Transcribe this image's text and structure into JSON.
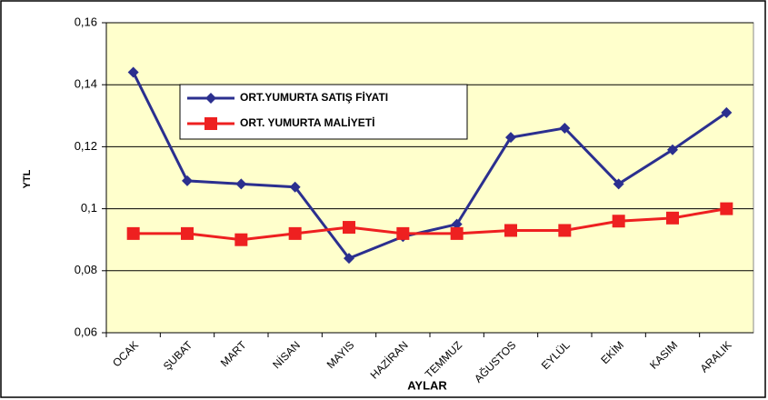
{
  "chart_data": {
    "type": "line",
    "x_label": "AYLAR",
    "y_label": "YTL",
    "categories": [
      "OCAK",
      "ŞUBAT",
      "MART",
      "NİSAN",
      "MAYIS",
      "HAZİRAN",
      "TEMMUZ",
      "AĞUSTOS",
      "EYLÜL",
      "EKİM",
      "KASIM",
      "ARALIK"
    ],
    "series": [
      {
        "name": "ORT.YUMURTA SATIŞ FİYATI",
        "color": "#2b2f8f",
        "marker": "diamond",
        "values": [
          0.144,
          0.109,
          0.108,
          0.107,
          0.084,
          0.091,
          0.095,
          0.123,
          0.126,
          0.108,
          0.119,
          0.131
        ]
      },
      {
        "name": "ORT. YUMURTA MALİYETİ",
        "color": "#ee2020",
        "marker": "square",
        "values": [
          0.092,
          0.092,
          0.09,
          0.092,
          0.094,
          0.092,
          0.092,
          0.093,
          0.093,
          0.096,
          0.097,
          0.1
        ]
      }
    ],
    "ylim": [
      0.06,
      0.16
    ],
    "yticks": [
      {
        "value": 0.06,
        "label": "0,06"
      },
      {
        "value": 0.08,
        "label": "0,08"
      },
      {
        "value": 0.1,
        "label": "0,1"
      },
      {
        "value": 0.12,
        "label": "0,12"
      },
      {
        "value": 0.14,
        "label": "0,14"
      },
      {
        "value": 0.16,
        "label": "0,16"
      }
    ],
    "grid": true
  }
}
